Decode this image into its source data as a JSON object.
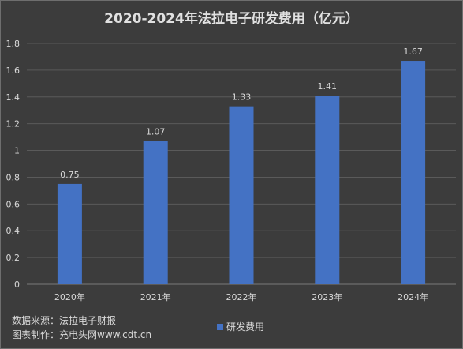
{
  "chart_data": {
    "type": "bar",
    "title": "2020-2024年法拉电子研发费用（亿元）",
    "categories": [
      "2020年",
      "2021年",
      "2022年",
      "2023年",
      "2024年"
    ],
    "series": [
      {
        "name": "研发费用",
        "values": [
          0.75,
          1.07,
          1.33,
          1.41,
          1.67
        ],
        "labels": [
          "0.75",
          "1.07",
          "1.33",
          "1.41",
          "1.67"
        ]
      }
    ],
    "ylim": [
      0,
      1.8
    ],
    "yticks": [
      "0",
      "0.2",
      "0.4",
      "0.6",
      "0.8",
      "1",
      "1.2",
      "1.4",
      "1.6",
      "1.8"
    ],
    "grid": true,
    "legend": "bottom",
    "colors": {
      "bar": "#4472c4",
      "background": "#3c3c3c",
      "grid": "#5a5a5a",
      "text": "#d8d8d8"
    }
  },
  "footer": {
    "source": "数据来源：法拉电子财报",
    "credit": "图表制作：充电头网www.cdt.cn"
  }
}
